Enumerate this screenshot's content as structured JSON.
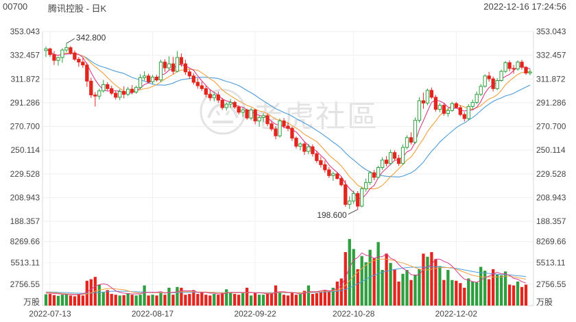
{
  "header": {
    "code": "00700",
    "name": "腾讯控股 - 日K",
    "datetime": "2022-12-16 17:24:56"
  },
  "watermark": {
    "text": "老虎社區"
  },
  "chart_data": [
    {
      "type": "candlestick",
      "title": "",
      "ylim": [
        188.357,
        353.043
      ],
      "y_ticks": [
        "353.043",
        "332.457",
        "311.872",
        "291.286",
        "270.700",
        "250.114",
        "229.528",
        "208.943",
        "188.357"
      ],
      "x_tick_labels": [
        "2022-07-13",
        "2022-08-17",
        "2022-09-22",
        "2022-10-28",
        "2022-12-02"
      ],
      "x_tick_index": [
        1,
        26,
        51,
        75,
        100
      ],
      "annotations": [
        {
          "text": "342.800",
          "index": 5,
          "value": 342.8
        },
        {
          "text": "198.600",
          "index": 76,
          "value": 198.6
        }
      ],
      "colors": {
        "up": "#2e9e3e",
        "down": "#e2261f",
        "ma5": "#d63a8e",
        "ma10": "#f0a040",
        "ma20": "#4c9bd8"
      },
      "ohlc": [
        [
          336.5,
          340.0,
          331.0,
          338.0
        ],
        [
          338.0,
          339.0,
          331.0,
          333.0
        ],
        [
          333.0,
          336.0,
          324.0,
          328.0
        ],
        [
          328.0,
          331.0,
          323.5,
          330.5
        ],
        [
          330.5,
          338.5,
          326.0,
          337.0
        ],
        [
          337.0,
          342.8,
          335.0,
          339.0
        ],
        [
          339.0,
          340.5,
          333.0,
          334.5
        ],
        [
          334.5,
          336.5,
          327.5,
          329.0
        ],
        [
          329.0,
          331.0,
          322.5,
          326.5
        ],
        [
          326.5,
          330.0,
          321.5,
          324.0
        ],
        [
          324.0,
          326.0,
          305.0,
          310.0
        ],
        [
          310.0,
          313.0,
          295.5,
          298.0
        ],
        [
          298.0,
          300.5,
          288.0,
          297.0
        ],
        [
          297.0,
          303.5,
          294.0,
          301.5
        ],
        [
          301.5,
          311.0,
          300.0,
          307.0
        ],
        [
          307.0,
          309.0,
          302.0,
          303.5
        ],
        [
          303.5,
          306.0,
          298.0,
          299.5
        ],
        [
          299.5,
          301.0,
          294.0,
          296.0
        ],
        [
          296.0,
          303.0,
          293.5,
          301.0
        ],
        [
          301.0,
          305.5,
          295.0,
          298.5
        ],
        [
          298.5,
          305.0,
          297.0,
          303.0
        ],
        [
          303.0,
          306.5,
          298.5,
          300.5
        ],
        [
          300.5,
          306.0,
          299.0,
          304.5
        ],
        [
          304.5,
          316.0,
          303.0,
          313.0
        ],
        [
          313.0,
          318.5,
          310.5,
          314.5
        ],
        [
          314.5,
          316.5,
          308.0,
          309.5
        ],
        [
          309.5,
          315.5,
          307.0,
          313.5
        ],
        [
          313.5,
          315.5,
          309.5,
          311.0
        ],
        [
          311.0,
          328.5,
          309.0,
          326.5
        ],
        [
          326.5,
          329.0,
          318.0,
          321.5
        ],
        [
          321.5,
          331.5,
          319.5,
          325.0
        ],
        [
          325.0,
          331.0,
          316.0,
          318.5
        ],
        [
          318.5,
          336.0,
          317.5,
          330.5
        ],
        [
          330.5,
          334.0,
          322.5,
          325.0
        ],
        [
          325.0,
          328.5,
          315.5,
          318.0
        ],
        [
          318.0,
          320.0,
          312.0,
          314.5
        ],
        [
          314.5,
          317.0,
          307.0,
          309.0
        ],
        [
          309.0,
          312.5,
          303.5,
          306.0
        ],
        [
          306.0,
          309.5,
          301.5,
          303.5
        ],
        [
          303.5,
          306.0,
          296.0,
          298.5
        ],
        [
          298.5,
          303.0,
          293.0,
          295.5
        ],
        [
          295.5,
          300.5,
          292.5,
          298.0
        ],
        [
          298.0,
          301.0,
          291.0,
          293.5
        ],
        [
          293.5,
          295.5,
          285.0,
          287.0
        ],
        [
          287.0,
          291.5,
          284.5,
          290.0
        ],
        [
          290.0,
          294.5,
          287.0,
          291.5
        ],
        [
          291.5,
          293.0,
          286.0,
          287.5
        ],
        [
          287.5,
          289.0,
          281.0,
          283.0
        ],
        [
          283.0,
          287.0,
          279.0,
          285.0
        ],
        [
          285.0,
          286.0,
          276.5,
          278.0
        ],
        [
          278.0,
          287.0,
          276.0,
          285.0
        ],
        [
          285.0,
          286.0,
          272.5,
          275.5
        ],
        [
          275.5,
          280.0,
          270.5,
          278.5
        ],
        [
          278.5,
          282.0,
          274.5,
          280.0
        ],
        [
          280.0,
          281.5,
          271.0,
          273.0
        ],
        [
          273.0,
          275.5,
          266.5,
          268.5
        ],
        [
          268.5,
          271.0,
          259.5,
          262.5
        ],
        [
          262.5,
          277.5,
          261.0,
          275.5
        ],
        [
          275.5,
          278.0,
          269.0,
          271.0
        ],
        [
          271.0,
          274.0,
          266.5,
          269.0
        ],
        [
          269.0,
          270.5,
          258.0,
          260.5
        ],
        [
          260.5,
          262.0,
          251.5,
          253.5
        ],
        [
          253.5,
          257.0,
          250.0,
          255.5
        ],
        [
          255.5,
          257.0,
          246.0,
          249.0
        ],
        [
          249.0,
          255.5,
          246.5,
          253.0
        ],
        [
          253.0,
          255.0,
          244.5,
          247.0
        ],
        [
          247.0,
          249.5,
          239.0,
          241.0
        ],
        [
          241.0,
          244.5,
          235.0,
          237.5
        ],
        [
          237.5,
          241.0,
          230.5,
          233.0
        ],
        [
          233.0,
          235.5,
          226.0,
          228.0
        ],
        [
          228.0,
          231.5,
          223.5,
          229.5
        ],
        [
          229.5,
          231.0,
          224.5,
          225.5
        ],
        [
          225.5,
          227.0,
          218.5,
          220.0
        ],
        [
          220.0,
          224.0,
          201.0,
          203.0
        ],
        [
          203.0,
          210.0,
          199.0,
          206.0
        ],
        [
          206.0,
          215.0,
          203.5,
          212.5
        ],
        [
          212.5,
          214.5,
          198.6,
          201.5
        ],
        [
          201.5,
          218.5,
          200.5,
          216.5
        ],
        [
          216.5,
          225.5,
          214.0,
          222.0
        ],
        [
          222.0,
          232.0,
          220.0,
          230.5
        ],
        [
          230.5,
          233.0,
          224.0,
          226.5
        ],
        [
          226.5,
          236.5,
          225.5,
          235.0
        ],
        [
          235.0,
          244.0,
          233.0,
          241.5
        ],
        [
          241.5,
          245.0,
          236.0,
          238.5
        ],
        [
          238.5,
          250.5,
          237.0,
          248.0
        ],
        [
          248.0,
          250.0,
          241.0,
          243.0
        ],
        [
          243.0,
          246.0,
          236.5,
          238.5
        ],
        [
          238.5,
          255.0,
          237.5,
          252.5
        ],
        [
          252.5,
          263.0,
          251.0,
          261.0
        ],
        [
          261.0,
          265.5,
          255.0,
          257.0
        ],
        [
          257.0,
          278.5,
          255.5,
          276.0
        ],
        [
          276.0,
          296.0,
          274.0,
          293.0
        ],
        [
          293.0,
          300.0,
          286.0,
          291.0
        ],
        [
          291.0,
          303.5,
          289.0,
          302.0
        ],
        [
          302.0,
          304.5,
          294.5,
          296.0
        ],
        [
          296.0,
          298.0,
          283.5,
          285.5
        ],
        [
          285.5,
          291.0,
          283.0,
          289.0
        ],
        [
          289.0,
          290.5,
          280.0,
          282.0
        ],
        [
          282.0,
          286.5,
          279.0,
          284.5
        ],
        [
          284.5,
          292.0,
          283.5,
          290.5
        ],
        [
          290.5,
          292.0,
          286.5,
          287.0
        ],
        [
          287.0,
          289.0,
          279.5,
          281.0
        ],
        [
          281.0,
          283.0,
          275.0,
          277.5
        ],
        [
          277.5,
          290.0,
          276.0,
          288.0
        ],
        [
          288.0,
          294.0,
          285.5,
          291.5
        ],
        [
          291.5,
          301.0,
          290.0,
          298.5
        ],
        [
          298.5,
          307.5,
          297.0,
          305.5
        ],
        [
          305.5,
          316.0,
          304.5,
          314.5
        ],
        [
          314.5,
          318.0,
          309.5,
          312.0
        ],
        [
          312.0,
          314.0,
          301.0,
          303.5
        ],
        [
          303.5,
          312.5,
          302.0,
          310.5
        ],
        [
          310.5,
          320.0,
          309.5,
          318.5
        ],
        [
          318.5,
          327.5,
          317.0,
          326.0
        ],
        [
          326.0,
          328.0,
          318.5,
          321.0
        ],
        [
          321.0,
          324.0,
          316.5,
          320.5
        ],
        [
          320.5,
          328.0,
          319.0,
          326.5
        ],
        [
          326.5,
          328.5,
          320.0,
          322.0
        ],
        [
          322.0,
          323.0,
          315.5,
          317.0
        ],
        [
          317.0,
          320.5,
          315.0,
          318.0
        ]
      ],
      "volume": {
        "label": "万股",
        "ylim": [
          0,
          9200
        ],
        "y_ticks": [
          "8269.66",
          "5513.11",
          "2756.55"
        ],
        "values": [
          1450,
          1500,
          1350,
          1250,
          1400,
          1500,
          1300,
          1200,
          1400,
          1300,
          3200,
          3400,
          3700,
          2700,
          1700,
          2000,
          1500,
          1400,
          1300,
          1350,
          1600,
          1400,
          1300,
          1400,
          2600,
          1300,
          1400,
          1300,
          1700,
          1400,
          2300,
          1400,
          2400,
          2300,
          1400,
          1500,
          2000,
          1500,
          1700,
          1400,
          1300,
          1500,
          1400,
          1600,
          2100,
          1700,
          1500,
          1400,
          1600,
          2300,
          1300,
          1600,
          1400,
          1400,
          1500,
          1600,
          2600,
          1800,
          1400,
          1300,
          1700,
          1400,
          1500,
          1900,
          2600,
          1500,
          1600,
          1700,
          2000,
          1900,
          2300,
          3100,
          3500,
          6900,
          8600,
          7300,
          4700,
          6400,
          5600,
          7200,
          6100,
          8200,
          4600,
          6700,
          5500,
          4700,
          3100,
          4100,
          4600,
          3300,
          4000,
          4700,
          6700,
          6300,
          6900,
          6000,
          5100,
          3300,
          4600,
          3300,
          3200,
          2900,
          2300,
          3500,
          3100,
          3000,
          5000,
          4500,
          3400,
          4700,
          4000,
          3900,
          4400,
          2700,
          2600,
          3100,
          2400,
          2700
        ],
        "ma5": [
          1600,
          1600,
          1550,
          1520,
          1480,
          1450,
          1420,
          1400,
          1450,
          1500,
          1750,
          2100,
          2500,
          2700,
          2800,
          2700,
          2300,
          1900,
          1700,
          1600,
          1550,
          1500,
          1500,
          1500,
          1700,
          1700,
          1700,
          1700,
          1800,
          1600,
          1700,
          1700,
          1800,
          1900,
          1900,
          1900,
          1900,
          1700,
          1700,
          1700,
          1600,
          1600,
          1500,
          1500,
          1600,
          1700,
          1700,
          1700,
          1700,
          1700,
          1700,
          1650,
          1650,
          1600,
          1500,
          1500,
          1700,
          1800,
          1800,
          1700,
          1700,
          1600,
          1500,
          1600,
          1800,
          1800,
          1800,
          1900,
          2000,
          1900,
          2000,
          2200,
          2600,
          3600,
          4900,
          5900,
          6200,
          6800,
          6500,
          6400,
          6100,
          6300,
          6300,
          6700,
          6100,
          5900,
          5300,
          4800,
          4500,
          4000,
          3900,
          4000,
          4700,
          5000,
          5300,
          6000,
          6000,
          5700,
          5500,
          5100,
          4500,
          3900,
          3400,
          3300,
          3100,
          3000,
          3300,
          3600,
          3800,
          4100,
          4300,
          4100,
          4100,
          3900,
          3500,
          3400,
          3100,
          2900
        ],
        "ma10": [
          1700,
          1690,
          1650,
          1600,
          1550,
          1500,
          1480,
          1460,
          1450,
          1450,
          1500,
          1650,
          1850,
          2000,
          2100,
          2200,
          2200,
          2150,
          2100,
          2050,
          1900,
          1750,
          1650,
          1600,
          1650,
          1700,
          1650,
          1650,
          1650,
          1650,
          1700,
          1700,
          1750,
          1800,
          1800,
          1800,
          1800,
          1750,
          1750,
          1750,
          1700,
          1700,
          1650,
          1650,
          1650,
          1650,
          1650,
          1650,
          1650,
          1650,
          1650,
          1650,
          1650,
          1650,
          1600,
          1600,
          1650,
          1700,
          1700,
          1650,
          1650,
          1650,
          1650,
          1650,
          1700,
          1750,
          1750,
          1800,
          1850,
          1850,
          1900,
          2000,
          2200,
          2600,
          3200,
          3800,
          4300,
          4800,
          5200,
          5600,
          5800,
          6000,
          6000,
          6000,
          5900,
          5800,
          5600,
          5500,
          5300,
          5100,
          4900,
          4700,
          4600,
          4600,
          4700,
          4800,
          4900,
          4900,
          4900,
          4900,
          4700,
          4500,
          4300,
          4100,
          3900,
          3800,
          3700,
          3700,
          3700,
          3700,
          3700,
          3700,
          3800,
          3800,
          3700,
          3600,
          3500,
          3400
        ],
        "ma20": [
          1750,
          1740,
          1730,
          1700,
          1680,
          1650,
          1630,
          1610,
          1590,
          1580,
          1580,
          1600,
          1650,
          1700,
          1750,
          1800,
          1850,
          1850,
          1850,
          1850,
          1850,
          1800,
          1780,
          1760,
          1740,
          1720,
          1700,
          1690,
          1680,
          1670,
          1660,
          1660,
          1670,
          1680,
          1690,
          1700,
          1700,
          1700,
          1700,
          1700,
          1700,
          1700,
          1690,
          1680,
          1680,
          1670,
          1670,
          1670,
          1670,
          1670,
          1670,
          1660,
          1660,
          1660,
          1650,
          1650,
          1650,
          1660,
          1660,
          1660,
          1660,
          1660,
          1660,
          1660,
          1670,
          1680,
          1700,
          1720,
          1750,
          1780,
          1800,
          1850,
          1950,
          2100,
          2300,
          2550,
          2800,
          3100,
          3400,
          3700,
          3900,
          4100,
          4300,
          4450,
          4550,
          4650,
          4750,
          4850,
          4900,
          4950,
          4950,
          4950,
          4950,
          5000,
          5000,
          5000,
          5000,
          4950,
          4900,
          4850,
          4800,
          4700,
          4600,
          4500,
          4400,
          4300,
          4250,
          4200,
          4150,
          4100,
          4050,
          4000,
          4000,
          3950,
          3900,
          3850,
          3800,
          3750
        ]
      }
    }
  ]
}
